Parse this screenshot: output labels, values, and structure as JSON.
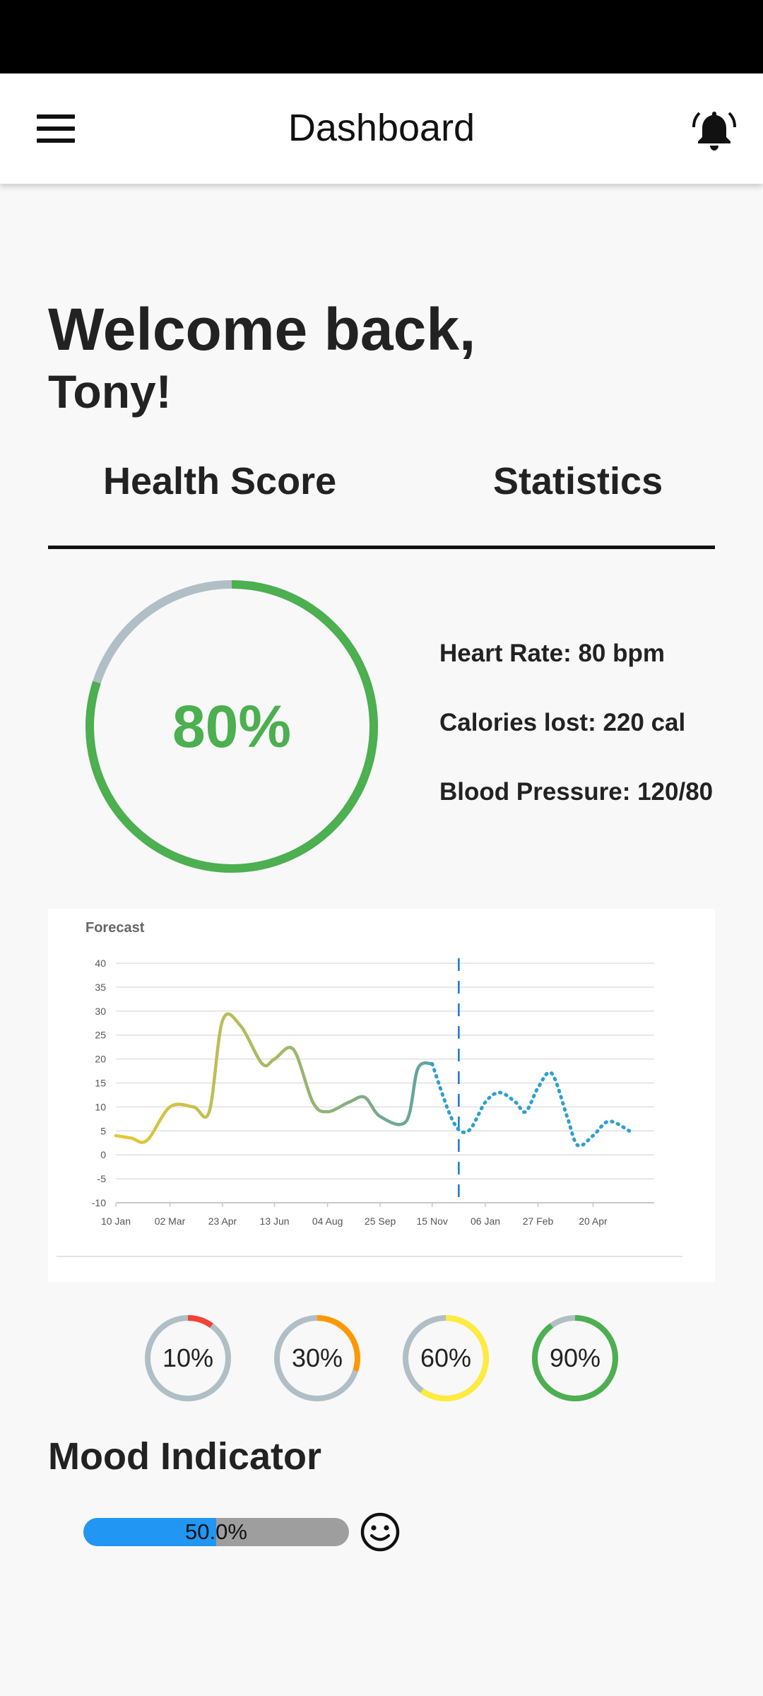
{
  "app_bar": {
    "title": "Dashboard",
    "menu_icon": "hamburger-menu-icon",
    "notification_icon": "bell-icon"
  },
  "welcome": {
    "line1": "Welcome back,",
    "line2": "Tony!"
  },
  "tabs": [
    {
      "label": "Health Score",
      "active": true
    },
    {
      "label": "Statistics",
      "active": false
    }
  ],
  "health_score": {
    "value_text": "80%",
    "fraction": 0.8,
    "color": "#4caf50",
    "track_color": "#b0bec5"
  },
  "stats": {
    "heart_rate": "Heart Rate: 80 bpm",
    "calories": "Calories lost: 220 cal",
    "blood_pressure": "Blood Pressure: 120/80"
  },
  "chart_data": {
    "type": "line",
    "title": "Forecast",
    "ylim": [
      -10,
      40
    ],
    "y_ticks": [
      "-10",
      "-5",
      "0",
      "5",
      "10",
      "15",
      "20",
      "25",
      "30",
      "35",
      "40"
    ],
    "x_ticks": [
      "10 Jan",
      "02 Mar",
      "23 Apr",
      "13 Jun",
      "04 Aug",
      "25 Sep",
      "15 Nov",
      "06 Jan",
      "27 Feb",
      "20 Apr"
    ],
    "grid": true,
    "forecast_divider_after": "15 Nov",
    "series": [
      {
        "style": "solid",
        "x": [
          "10 Jan",
          "25 Jan",
          "10 Feb",
          "02 Mar",
          "25 Mar",
          "10 Apr",
          "23 Apr",
          "10 May",
          "01 Jun",
          "13 Jun",
          "01 Jul",
          "20 Jul",
          "04 Aug",
          "25 Aug",
          "10 Sep",
          "25 Sep",
          "20 Oct",
          "01 Nov",
          "15 Nov"
        ],
        "y": [
          4,
          3.5,
          3,
          10,
          10,
          9,
          28,
          27,
          19,
          20,
          22,
          11,
          9,
          11,
          12,
          8,
          7,
          18,
          19
        ]
      },
      {
        "style": "dotted",
        "x": [
          "15 Nov",
          "05 Dec",
          "20 Dec",
          "06 Jan",
          "20 Jan",
          "05 Feb",
          "15 Feb",
          "27 Feb",
          "10 Mar",
          "25 Mar",
          "05 Apr",
          "20 Apr",
          "05 May",
          "25 May"
        ],
        "y": [
          19,
          7,
          5,
          11,
          13,
          11,
          9,
          14,
          17,
          8,
          2,
          4,
          7,
          5
        ]
      }
    ]
  },
  "rings": [
    {
      "label": "10%",
      "fraction": 0.1,
      "color": "#f44336"
    },
    {
      "label": "30%",
      "fraction": 0.3,
      "color": "#ff9800"
    },
    {
      "label": "60%",
      "fraction": 0.6,
      "color": "#ffeb3b"
    },
    {
      "label": "90%",
      "fraction": 0.9,
      "color": "#4caf50"
    }
  ],
  "mood": {
    "title": "Mood Indicator",
    "value_text": "50.0%",
    "fraction": 0.5,
    "icon": "smiley-face-icon"
  }
}
